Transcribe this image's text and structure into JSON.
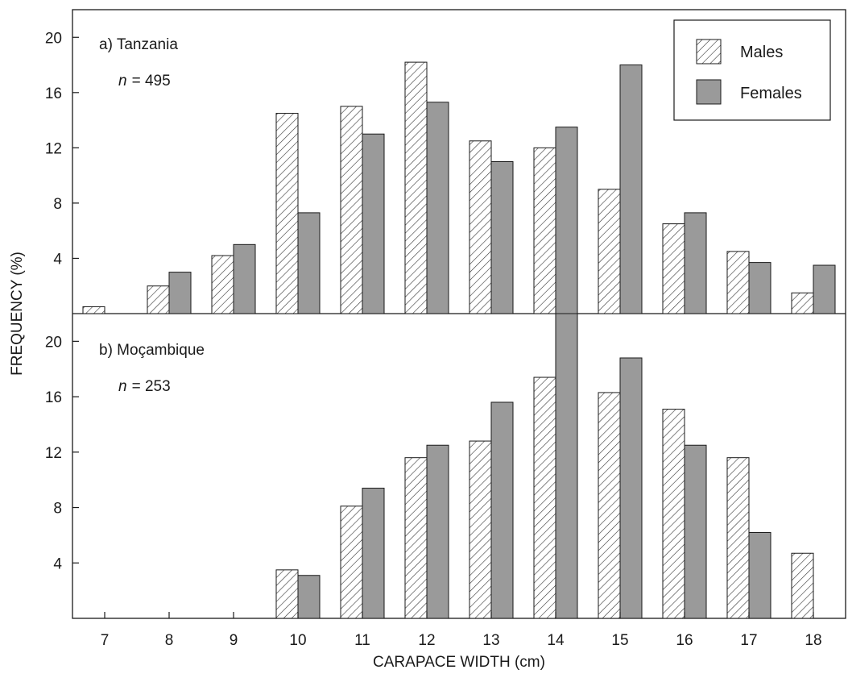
{
  "chart_data": [
    {
      "type": "bar",
      "panel_label": "a) Tanzania",
      "n_prefix": "n",
      "n_value": "= 495",
      "categories": [
        "7",
        "8",
        "9",
        "10",
        "11",
        "12",
        "13",
        "14",
        "15",
        "16",
        "17",
        "18"
      ],
      "series": [
        {
          "name": "Males",
          "values": [
            0.5,
            2.0,
            4.2,
            14.5,
            15.0,
            18.2,
            12.5,
            12.0,
            9.0,
            6.5,
            4.5,
            1.5
          ]
        },
        {
          "name": "Females",
          "values": [
            0,
            3.0,
            5.0,
            7.3,
            13.0,
            15.3,
            11.0,
            13.5,
            18.0,
            7.3,
            3.7,
            3.5
          ]
        }
      ],
      "yticks": [
        "4",
        "8",
        "12",
        "16",
        "20"
      ],
      "ylim": [
        0,
        22
      ],
      "legend": "top-right"
    },
    {
      "type": "bar",
      "panel_label": "b) Moçambique",
      "n_prefix": "n",
      "n_value": "= 253",
      "categories": [
        "7",
        "8",
        "9",
        "10",
        "11",
        "12",
        "13",
        "14",
        "15",
        "16",
        "17",
        "18"
      ],
      "series": [
        {
          "name": "Males",
          "values": [
            0,
            0,
            0,
            3.5,
            8.1,
            11.6,
            12.8,
            17.4,
            16.3,
            15.1,
            11.6,
            4.7
          ]
        },
        {
          "name": "Females",
          "values": [
            0,
            0,
            0,
            3.1,
            9.4,
            12.5,
            15.6,
            22.0,
            18.8,
            12.5,
            6.2,
            0
          ]
        }
      ],
      "yticks": [
        "4",
        "8",
        "12",
        "16",
        "20"
      ],
      "ylim": [
        0,
        22
      ]
    }
  ],
  "axes": {
    "ylabel": "FREQUENCY (%)",
    "xlabel": "CARAPACE WIDTH (cm)"
  },
  "legend": {
    "males": "Males",
    "females": "Females"
  },
  "colors": {
    "females_fill": "#9a9a9a",
    "males_hatch": "#333333",
    "axis": "#1a1a1a"
  }
}
